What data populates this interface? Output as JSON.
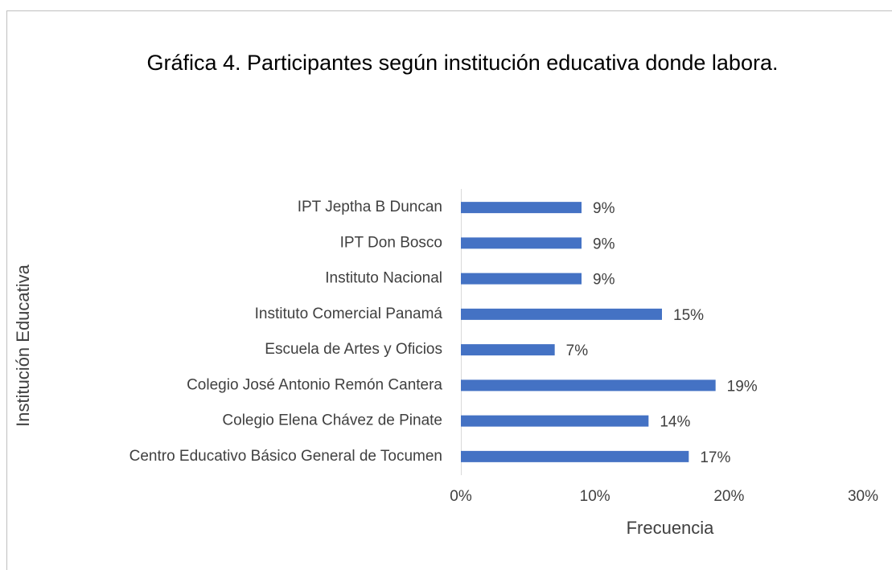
{
  "chart_data": {
    "type": "bar",
    "orientation": "horizontal",
    "title": "Gráfica 4. Participantes según institución educativa donde labora.",
    "categories": [
      "IPT Jeptha B Duncan",
      "IPT Don Bosco",
      "Instituto Nacional",
      "Instituto Comercial Panamá",
      "Escuela de Artes y Oficios",
      "Colegio José Antonio Remón Cantera",
      "Colegio Elena Chávez de Pinate",
      "Centro Educativo Básico General de Tocumen"
    ],
    "values": [
      9,
      9,
      9,
      15,
      7,
      19,
      14,
      17
    ],
    "value_labels": [
      "9%",
      "9%",
      "9%",
      "15%",
      "7%",
      "19%",
      "14%",
      "17%"
    ],
    "color": "#4472c4",
    "xlim": [
      0,
      30
    ],
    "xticks": [
      {
        "value": 0,
        "label": "0%"
      },
      {
        "value": 10,
        "label": "10%"
      },
      {
        "value": 20,
        "label": "20%"
      },
      {
        "value": 30,
        "label": "30%"
      }
    ],
    "xlabel": "Frecuencia",
    "ylabel": "Institución Educativa",
    "grid": false
  }
}
